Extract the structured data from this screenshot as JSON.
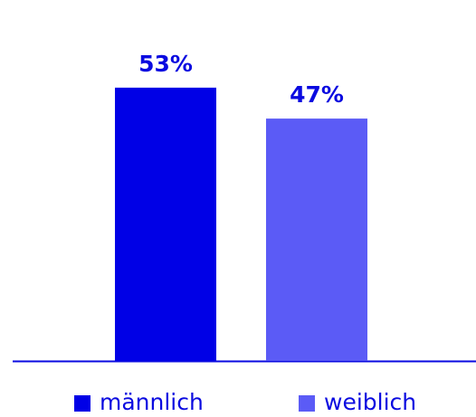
{
  "chart_data": {
    "type": "bar",
    "series": [
      {
        "name": "männlich",
        "color": "#0000e6",
        "values": [
          53
        ],
        "value_labels": [
          "53%"
        ]
      },
      {
        "name": "weiblich",
        "color": "#5b5bf6",
        "values": [
          47
        ],
        "value_labels": [
          "47%"
        ]
      }
    ]
  }
}
